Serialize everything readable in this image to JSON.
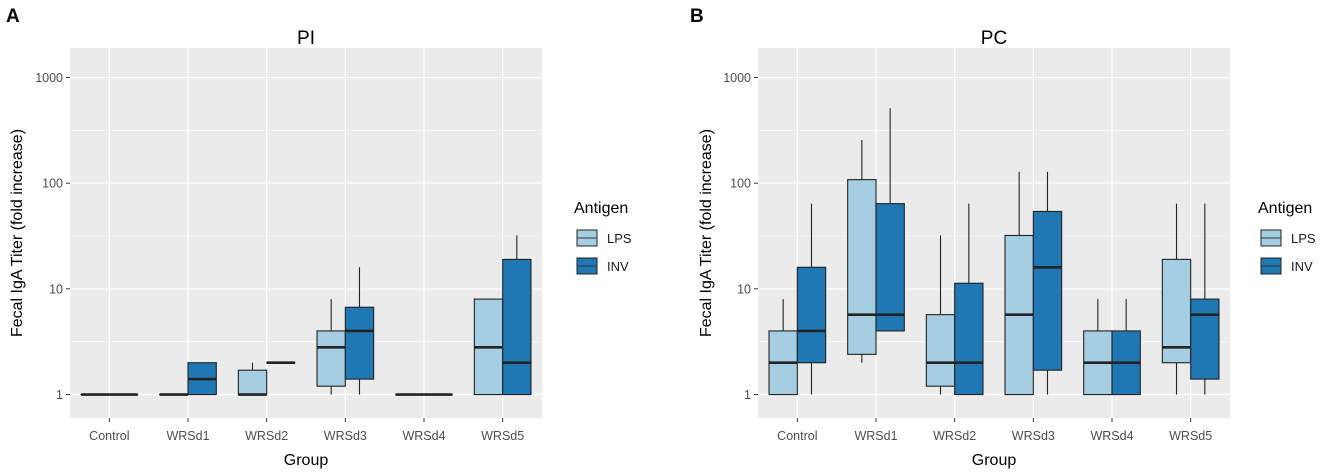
{
  "colors": {
    "panel_bg": "#ebebeb",
    "grid": "#ffffff",
    "lps": "#a6cee3",
    "inv": "#1f78b4",
    "outline": "#222222",
    "axis_text": "#4d4d4d",
    "text": "#000000"
  },
  "chart_data": [
    {
      "type": "box",
      "panel_label": "A",
      "title": "PI",
      "xlabel": "Group",
      "ylabel": "Fecal IgA Titer (fold increase)",
      "y_scale": "log10",
      "ylim": [
        0.6,
        1900
      ],
      "y_ticks": [
        1,
        10,
        100,
        1000
      ],
      "y_tick_labels": [
        "1",
        "10",
        "100",
        "1000"
      ],
      "categories": [
        "Control",
        "WRSd1",
        "WRSd2",
        "WRSd3",
        "WRSd4",
        "WRSd5"
      ],
      "legend": {
        "title": "Antigen",
        "entries": [
          "LPS",
          "INV"
        ],
        "position": "right"
      },
      "series": [
        {
          "name": "LPS",
          "boxes": [
            {
              "min": 1,
              "q1": 1,
              "median": 1,
              "q3": 1,
              "max": 1
            },
            {
              "min": 1,
              "q1": 1,
              "median": 1,
              "q3": 1,
              "max": 1
            },
            {
              "min": 1,
              "q1": 1,
              "median": 1,
              "q3": 1.7,
              "max": 2
            },
            {
              "min": 1,
              "q1": 1.2,
              "median": 2.8,
              "q3": 4,
              "max": 8
            },
            {
              "min": 1,
              "q1": 1,
              "median": 1,
              "q3": 1,
              "max": 1
            },
            {
              "min": 1,
              "q1": 1,
              "median": 2.8,
              "q3": 8,
              "max": 8
            }
          ]
        },
        {
          "name": "INV",
          "boxes": [
            {
              "min": 1,
              "q1": 1,
              "median": 1,
              "q3": 1,
              "max": 1
            },
            {
              "min": 1,
              "q1": 1,
              "median": 1.4,
              "q3": 2,
              "max": 2
            },
            {
              "min": 2,
              "q1": 2,
              "median": 2,
              "q3": 2,
              "max": 2
            },
            {
              "min": 1,
              "q1": 1.4,
              "median": 4,
              "q3": 6.7,
              "max": 16
            },
            {
              "min": 1,
              "q1": 1,
              "median": 1,
              "q3": 1,
              "max": 1
            },
            {
              "min": 1,
              "q1": 1,
              "median": 2,
              "q3": 19,
              "max": 32
            }
          ]
        }
      ]
    },
    {
      "type": "box",
      "panel_label": "B",
      "title": "PC",
      "xlabel": "Group",
      "ylabel": "Fecal IgA Titer (fold increase)",
      "y_scale": "log10",
      "ylim": [
        0.6,
        1900
      ],
      "y_ticks": [
        1,
        10,
        100,
        1000
      ],
      "y_tick_labels": [
        "1",
        "10",
        "100",
        "1000"
      ],
      "categories": [
        "Control",
        "WRSd1",
        "WRSd2",
        "WRSd3",
        "WRSd4",
        "WRSd5"
      ],
      "legend": {
        "title": "Antigen",
        "entries": [
          "LPS",
          "INV"
        ],
        "position": "right"
      },
      "series": [
        {
          "name": "LPS",
          "boxes": [
            {
              "min": 1,
              "q1": 1,
              "median": 2,
              "q3": 4,
              "max": 8
            },
            {
              "min": 2,
              "q1": 2.4,
              "median": 5.7,
              "q3": 108,
              "max": 256
            },
            {
              "min": 1,
              "q1": 1.2,
              "median": 2,
              "q3": 5.7,
              "max": 32
            },
            {
              "min": 1,
              "q1": 1,
              "median": 5.7,
              "q3": 32,
              "max": 128
            },
            {
              "min": 1,
              "q1": 1,
              "median": 2,
              "q3": 4,
              "max": 8
            },
            {
              "min": 1,
              "q1": 2,
              "median": 2.8,
              "q3": 19,
              "max": 64
            }
          ]
        },
        {
          "name": "INV",
          "boxes": [
            {
              "min": 1,
              "q1": 2,
              "median": 4,
              "q3": 16,
              "max": 64
            },
            {
              "min": 4,
              "q1": 4,
              "median": 5.7,
              "q3": 64,
              "max": 512
            },
            {
              "min": 1,
              "q1": 1,
              "median": 2,
              "q3": 11.3,
              "max": 64
            },
            {
              "min": 1,
              "q1": 1.7,
              "median": 16,
              "q3": 54,
              "max": 128
            },
            {
              "min": 1,
              "q1": 1,
              "median": 2,
              "q3": 4,
              "max": 8
            },
            {
              "min": 1,
              "q1": 1.4,
              "median": 5.7,
              "q3": 8,
              "max": 64
            }
          ]
        }
      ]
    }
  ]
}
